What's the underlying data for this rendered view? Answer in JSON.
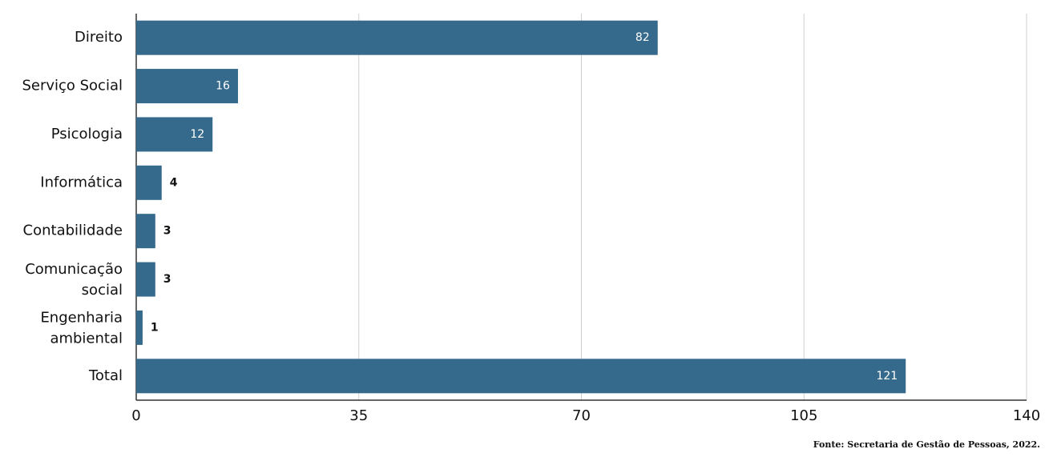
{
  "chart_data": {
    "type": "barh",
    "categories": [
      "Direito",
      "Serviço Social",
      "Psicologia",
      "Informática",
      "Contabilidade",
      "Comunicação social",
      "Engenharia ambiental",
      "Total"
    ],
    "values": [
      82,
      16,
      12,
      4,
      3,
      3,
      1,
      121
    ],
    "color": "#356a8c",
    "xlim": [
      0,
      140
    ],
    "xticks": [
      0,
      35,
      70,
      105,
      140
    ],
    "grid": true,
    "source": "Fonte: Secretaria de Gestão de Pessoas, 2022."
  }
}
